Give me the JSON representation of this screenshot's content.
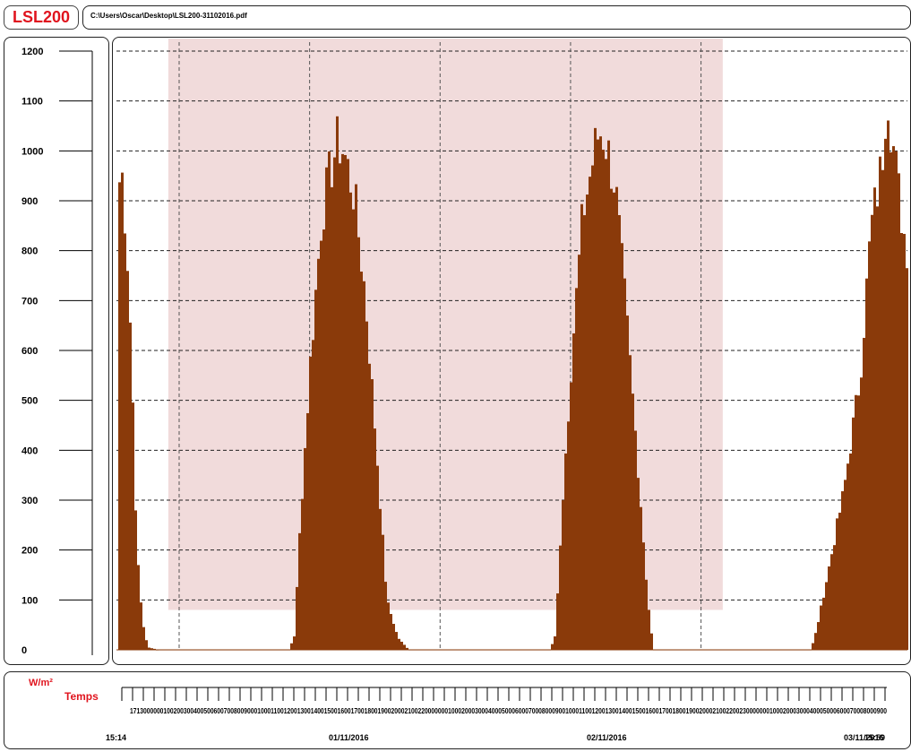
{
  "app": {
    "logo": "LSL200",
    "logo_color": "#e0141e",
    "file_path": "C:\\Users\\Oscar\\Desktop\\LSL200-31102016.pdf"
  },
  "chart_data": {
    "type": "bar",
    "ylabel": "W/m²",
    "xlabel": "Temps",
    "ylim": [
      0,
      1200
    ],
    "yticks": [
      0,
      100,
      200,
      300,
      400,
      500,
      600,
      700,
      800,
      900,
      1000,
      1100,
      1200
    ],
    "grid": "horizontal dashed every 100, vertical dashed at day/12h boundaries",
    "bar_color": "#8a3a0a",
    "highlight_color": "#e8c3c3",
    "highlight_range": {
      "from": "31/10/2016 20:00",
      "to": "02/11/2016 23:00",
      "y": [
        80,
        1200
      ]
    },
    "x_start": "31/10/2016 15:14",
    "x_end": "03/11/2016 15:59",
    "x_date_labels": [
      "15:14",
      "01/11/2016",
      "02/11/2016",
      "03/11/2016",
      "15:59"
    ],
    "x_ticks_text": "1713000000100200300400500600700800900010001100120013001400150016001700180019002000210022000000010002000300040005000600070008000900100011001200130014001500160017001800190020002100220023000000010002000300040005000600070008000900",
    "series": [
      {
        "values_description_free": true,
        "points": [
          {
            "t": "31/10/2016 15:14",
            "v": 940
          },
          {
            "t": "31/10/2016 15:40",
            "v": 960
          },
          {
            "t": "31/10/2016 16:05",
            "v": 820
          },
          {
            "t": "31/10/2016 16:30",
            "v": 610
          },
          {
            "t": "31/10/2016 17:00",
            "v": 200
          },
          {
            "t": "31/10/2016 17:30",
            "v": 60
          },
          {
            "t": "31/10/2016 18:00",
            "v": 5
          },
          {
            "t": "31/10/2016 19:00",
            "v": 0
          },
          {
            "t": "01/11/2016 07:00",
            "v": 0
          },
          {
            "t": "01/11/2016 07:30",
            "v": 30
          },
          {
            "t": "01/11/2016 08:00",
            "v": 250
          },
          {
            "t": "01/11/2016 09:00",
            "v": 600
          },
          {
            "t": "01/11/2016 10:00",
            "v": 880
          },
          {
            "t": "01/11/2016 11:00",
            "v": 990
          },
          {
            "t": "01/11/2016 11:30",
            "v": 1030
          },
          {
            "t": "01/11/2016 12:00",
            "v": 1010
          },
          {
            "t": "01/11/2016 13:00",
            "v": 920
          },
          {
            "t": "01/11/2016 14:00",
            "v": 720
          },
          {
            "t": "01/11/2016 15:00",
            "v": 420
          },
          {
            "t": "01/11/2016 16:00",
            "v": 100
          },
          {
            "t": "01/11/2016 17:00",
            "v": 25
          },
          {
            "t": "01/11/2016 18:00",
            "v": 0
          },
          {
            "t": "02/11/2016 07:00",
            "v": 0
          },
          {
            "t": "02/11/2016 07:30",
            "v": 30
          },
          {
            "t": "02/11/2016 08:00",
            "v": 250
          },
          {
            "t": "02/11/2016 09:00",
            "v": 600
          },
          {
            "t": "02/11/2016 10:00",
            "v": 880
          },
          {
            "t": "02/11/2016 11:00",
            "v": 1000
          },
          {
            "t": "02/11/2016 11:30",
            "v": 1050
          },
          {
            "t": "02/11/2016 12:00",
            "v": 1040
          },
          {
            "t": "02/11/2016 13:00",
            "v": 940
          },
          {
            "t": "02/11/2016 14:00",
            "v": 680
          },
          {
            "t": "02/11/2016 15:00",
            "v": 400
          },
          {
            "t": "02/11/2016 16:00",
            "v": 100
          },
          {
            "t": "02/11/2016 16:30",
            "v": 0
          },
          {
            "t": "03/11/2016 07:00",
            "v": 0
          },
          {
            "t": "03/11/2016 07:30",
            "v": 40
          },
          {
            "t": "03/11/2016 08:30",
            "v": 150
          },
          {
            "t": "03/11/2016 10:00",
            "v": 320
          },
          {
            "t": "03/11/2016 11:30",
            "v": 550
          },
          {
            "t": "03/11/2016 12:30",
            "v": 850
          },
          {
            "t": "03/11/2016 13:30",
            "v": 980
          },
          {
            "t": "03/11/2016 14:00",
            "v": 1150
          },
          {
            "t": "03/11/2016 14:30",
            "v": 1030
          },
          {
            "t": "03/11/2016 15:00",
            "v": 940
          },
          {
            "t": "03/11/2016 15:30",
            "v": 850
          },
          {
            "t": "03/11/2016 15:59",
            "v": 800
          }
        ]
      }
    ]
  }
}
